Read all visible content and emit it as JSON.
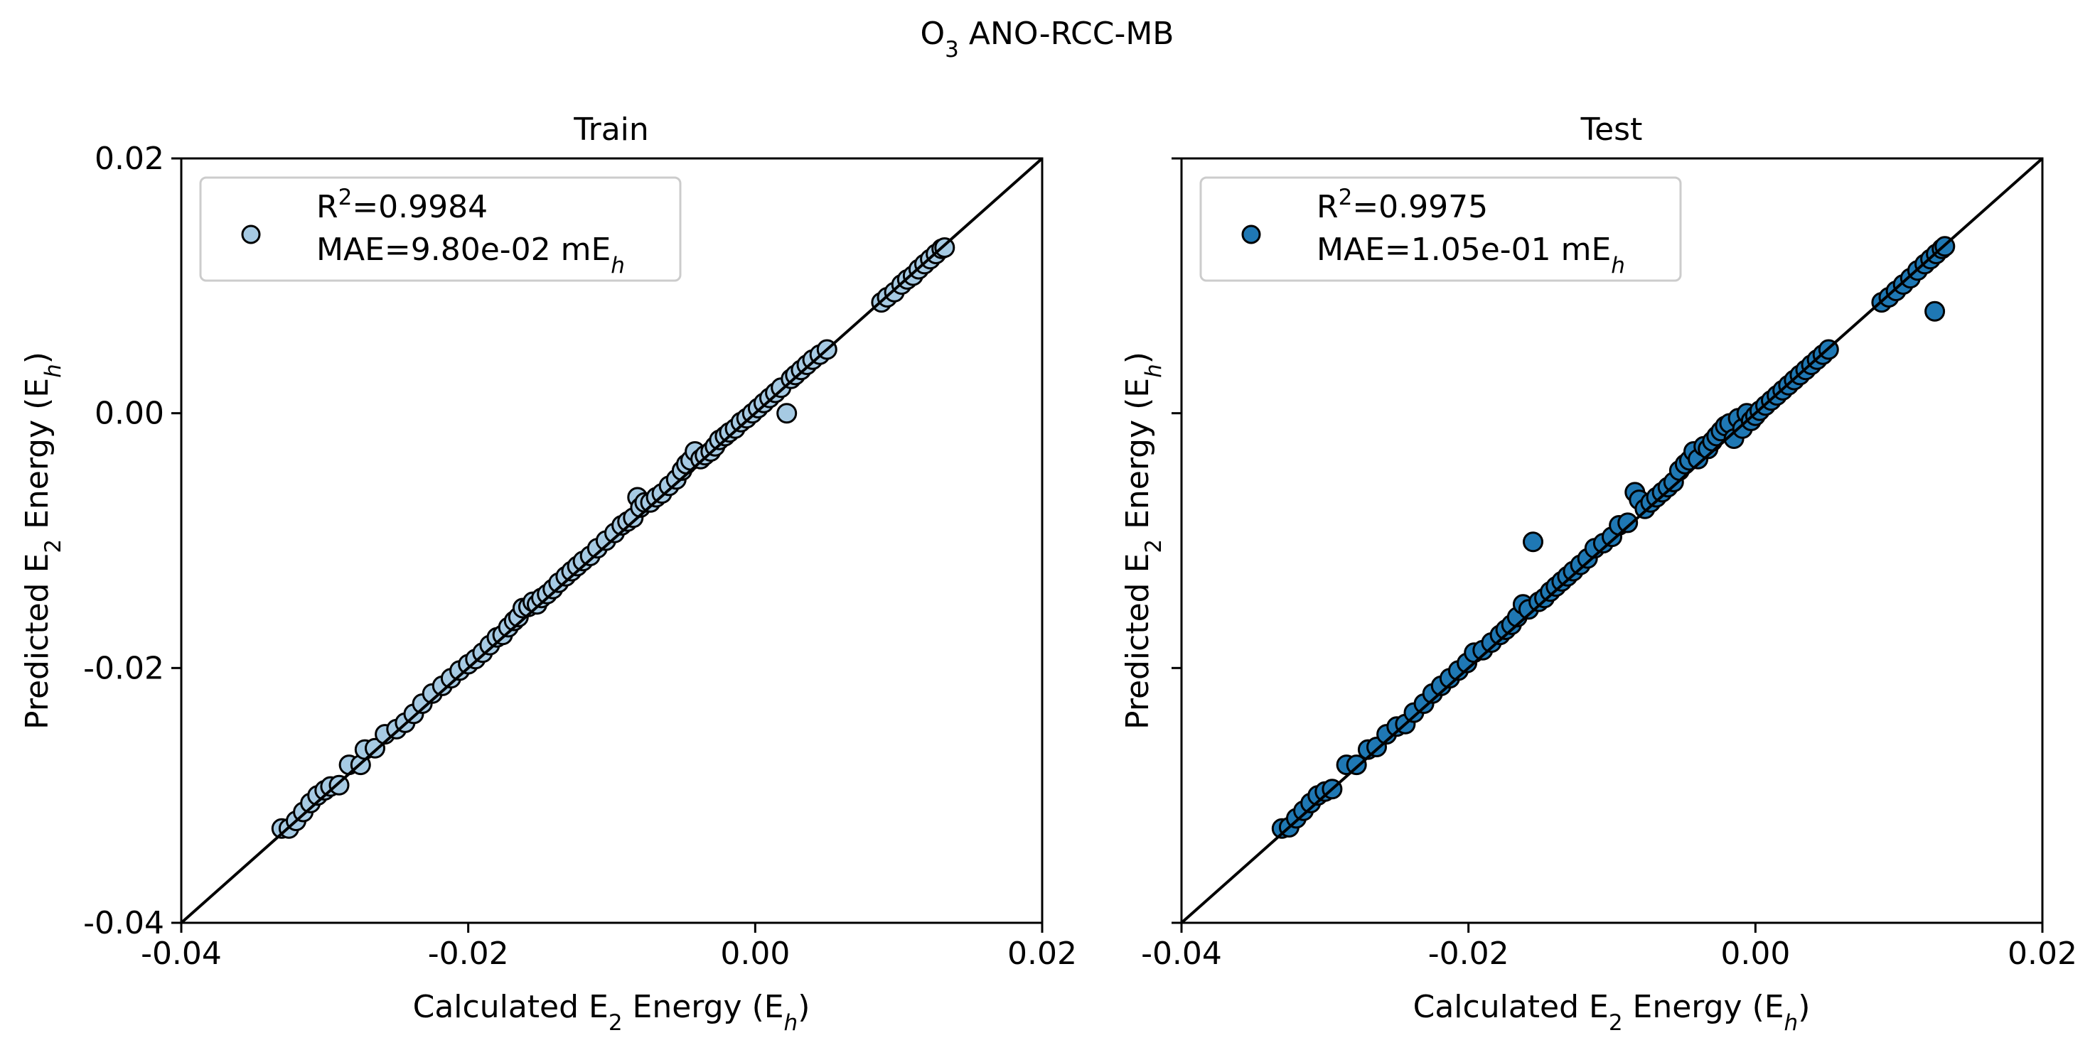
{
  "figure": {
    "title_main": "O",
    "title_sub": "3",
    "title_rest": " ANO-RCC-MB"
  },
  "chart_data": [
    {
      "type": "scatter",
      "title": "Train",
      "xlabel": {
        "pre": "Calculated E",
        "sub": "2",
        "mid": " Energy (E",
        "sub2": "h",
        "post": ")"
      },
      "ylabel": {
        "pre": "Predicted E",
        "sub": "2",
        "mid": " Energy (E",
        "sub2": "h",
        "post": ")"
      },
      "xlim": [
        -0.04,
        0.02
      ],
      "ylim": [
        -0.04,
        0.02
      ],
      "xticks": [
        -0.04,
        -0.02,
        0.0,
        0.02
      ],
      "xtick_labels": [
        "-0.04",
        "-0.02",
        "0.00",
        "0.02"
      ],
      "yticks": [
        -0.04,
        -0.02,
        0.0,
        0.02
      ],
      "ytick_labels": [
        "-0.04",
        "-0.02",
        "0.00",
        "0.02"
      ],
      "grid": false,
      "legend_placement": "upper-left",
      "legend": {
        "r2": "R",
        "r2_sup": "2",
        "r2_val": "=0.9984",
        "mae": "MAE=9.80e-02 mE",
        "mae_sub": "h"
      },
      "color": "#a6cae3",
      "points": [
        [
          -0.033,
          -0.0326
        ],
        [
          -0.0325,
          -0.0326
        ],
        [
          -0.032,
          -0.032
        ],
        [
          -0.0315,
          -0.0313
        ],
        [
          -0.031,
          -0.0306
        ],
        [
          -0.0305,
          -0.03
        ],
        [
          -0.03,
          -0.0296
        ],
        [
          -0.0296,
          -0.0293
        ],
        [
          -0.029,
          -0.0292
        ],
        [
          -0.0283,
          -0.0276
        ],
        [
          -0.0275,
          -0.0276
        ],
        [
          -0.0272,
          -0.0264
        ],
        [
          -0.0265,
          -0.0263
        ],
        [
          -0.0258,
          -0.0252
        ],
        [
          -0.025,
          -0.0248
        ],
        [
          -0.0244,
          -0.0243
        ],
        [
          -0.0238,
          -0.0236
        ],
        [
          -0.0232,
          -0.0228
        ],
        [
          -0.0225,
          -0.022
        ],
        [
          -0.0218,
          -0.0214
        ],
        [
          -0.0212,
          -0.0208
        ],
        [
          -0.0206,
          -0.0202
        ],
        [
          -0.02,
          -0.0197
        ],
        [
          -0.0195,
          -0.0193
        ],
        [
          -0.019,
          -0.0188
        ],
        [
          -0.0185,
          -0.0182
        ],
        [
          -0.018,
          -0.0176
        ],
        [
          -0.0176,
          -0.0174
        ],
        [
          -0.0172,
          -0.0168
        ],
        [
          -0.0168,
          -0.0163
        ],
        [
          -0.0165,
          -0.016
        ],
        [
          -0.0162,
          -0.0153
        ],
        [
          -0.0158,
          -0.0152
        ],
        [
          -0.0155,
          -0.0148
        ],
        [
          -0.0152,
          -0.015
        ],
        [
          -0.0149,
          -0.0145
        ],
        [
          -0.0145,
          -0.0142
        ],
        [
          -0.0141,
          -0.0138
        ],
        [
          -0.0137,
          -0.0133
        ],
        [
          -0.0132,
          -0.0128
        ],
        [
          -0.0128,
          -0.0124
        ],
        [
          -0.0124,
          -0.012
        ],
        [
          -0.012,
          -0.0116
        ],
        [
          -0.0115,
          -0.0112
        ],
        [
          -0.011,
          -0.0106
        ],
        [
          -0.0104,
          -0.01
        ],
        [
          -0.0098,
          -0.0094
        ],
        [
          -0.0093,
          -0.0088
        ],
        [
          -0.0089,
          -0.0085
        ],
        [
          -0.0085,
          -0.0082
        ],
        [
          -0.0082,
          -0.0066
        ],
        [
          -0.008,
          -0.0074
        ],
        [
          -0.0077,
          -0.007
        ],
        [
          -0.0073,
          -0.007
        ],
        [
          -0.0069,
          -0.0066
        ],
        [
          -0.0065,
          -0.0063
        ],
        [
          -0.006,
          -0.0057
        ],
        [
          -0.0055,
          -0.0052
        ],
        [
          -0.0051,
          -0.0045
        ],
        [
          -0.0048,
          -0.004
        ],
        [
          -0.0045,
          -0.0037
        ],
        [
          -0.0042,
          -0.003
        ],
        [
          -0.0038,
          -0.0036
        ],
        [
          -0.0035,
          -0.0033
        ],
        [
          -0.0031,
          -0.003
        ],
        [
          -0.0028,
          -0.0026
        ],
        [
          -0.0025,
          -0.0021
        ],
        [
          -0.0021,
          -0.0018
        ],
        [
          -0.0018,
          -0.0015
        ],
        [
          -0.0014,
          -0.0012
        ],
        [
          -0.001,
          -0.0007
        ],
        [
          -0.0006,
          -0.0004
        ],
        [
          -0.0002,
          0.0
        ],
        [
          0.0002,
          0.0004
        ],
        [
          0.0006,
          0.0008
        ],
        [
          0.001,
          0.0012
        ],
        [
          0.0014,
          0.0016
        ],
        [
          0.0018,
          0.002
        ],
        [
          0.0022,
          0.0
        ],
        [
          0.0025,
          0.0027
        ],
        [
          0.0028,
          0.003
        ],
        [
          0.0032,
          0.0034
        ],
        [
          0.0036,
          0.0038
        ],
        [
          0.004,
          0.0042
        ],
        [
          0.0045,
          0.0046
        ],
        [
          0.005,
          0.005
        ],
        [
          0.0088,
          0.0087
        ],
        [
          0.0092,
          0.0091
        ],
        [
          0.0097,
          0.0095
        ],
        [
          0.0102,
          0.0101
        ],
        [
          0.0106,
          0.0105
        ],
        [
          0.011,
          0.0108
        ],
        [
          0.0114,
          0.0113
        ],
        [
          0.0118,
          0.0117
        ],
        [
          0.0122,
          0.0121
        ],
        [
          0.0126,
          0.0125
        ],
        [
          0.013,
          0.0129
        ],
        [
          0.0132,
          0.013
        ]
      ]
    },
    {
      "type": "scatter",
      "title": "Test",
      "xlabel": {
        "pre": "Calculated E",
        "sub": "2",
        "mid": " Energy (E",
        "sub2": "h",
        "post": ")"
      },
      "ylabel": {
        "pre": "Predicted E",
        "sub": "2",
        "mid": " Energy (E",
        "sub2": "h",
        "post": ")"
      },
      "xlim": [
        -0.04,
        0.02
      ],
      "ylim": [
        -0.04,
        0.02
      ],
      "xticks": [
        -0.04,
        -0.02,
        0.0,
        0.02
      ],
      "xtick_labels": [
        "-0.04",
        "-0.02",
        "0.00",
        "0.02"
      ],
      "yticks": [
        -0.04,
        -0.02,
        0.0,
        0.02
      ],
      "ytick_labels": [
        "",
        "",
        "",
        ""
      ],
      "grid": false,
      "legend_placement": "upper-left",
      "legend": {
        "r2": "R",
        "r2_sup": "2",
        "r2_val": "=0.9975",
        "mae": "MAE=1.05e-01 mE",
        "mae_sub": "h"
      },
      "color": "#1f78b4",
      "points": [
        [
          -0.033,
          -0.0326
        ],
        [
          -0.0325,
          -0.0325
        ],
        [
          -0.032,
          -0.0318
        ],
        [
          -0.0315,
          -0.0312
        ],
        [
          -0.031,
          -0.0306
        ],
        [
          -0.0305,
          -0.03
        ],
        [
          -0.03,
          -0.0297
        ],
        [
          -0.0295,
          -0.0295
        ],
        [
          -0.0285,
          -0.0276
        ],
        [
          -0.0278,
          -0.0276
        ],
        [
          -0.027,
          -0.0264
        ],
        [
          -0.0264,
          -0.0262
        ],
        [
          -0.0257,
          -0.0252
        ],
        [
          -0.025,
          -0.0246
        ],
        [
          -0.0244,
          -0.0244
        ],
        [
          -0.0238,
          -0.0235
        ],
        [
          -0.0231,
          -0.0228
        ],
        [
          -0.0225,
          -0.022
        ],
        [
          -0.0219,
          -0.0214
        ],
        [
          -0.0213,
          -0.0208
        ],
        [
          -0.0207,
          -0.0202
        ],
        [
          -0.0201,
          -0.0196
        ],
        [
          -0.0196,
          -0.0188
        ],
        [
          -0.019,
          -0.0186
        ],
        [
          -0.0184,
          -0.018
        ],
        [
          -0.0178,
          -0.0174
        ],
        [
          -0.0174,
          -0.017
        ],
        [
          -0.017,
          -0.0166
        ],
        [
          -0.0166,
          -0.016
        ],
        [
          -0.0162,
          -0.015
        ],
        [
          -0.0158,
          -0.0154
        ],
        [
          -0.0155,
          -0.0101
        ],
        [
          -0.0151,
          -0.0148
        ],
        [
          -0.0147,
          -0.0145
        ],
        [
          -0.0143,
          -0.014
        ],
        [
          -0.0139,
          -0.0136
        ],
        [
          -0.0135,
          -0.0132
        ],
        [
          -0.0131,
          -0.0128
        ],
        [
          -0.0127,
          -0.0124
        ],
        [
          -0.0122,
          -0.0119
        ],
        [
          -0.0117,
          -0.0114
        ],
        [
          -0.0112,
          -0.0106
        ],
        [
          -0.0106,
          -0.0102
        ],
        [
          -0.01,
          -0.0097
        ],
        [
          -0.0095,
          -0.0088
        ],
        [
          -0.0089,
          -0.0086
        ],
        [
          -0.0084,
          -0.0062
        ],
        [
          -0.0081,
          -0.0068
        ],
        [
          -0.0077,
          -0.0075
        ],
        [
          -0.0073,
          -0.007
        ],
        [
          -0.0069,
          -0.0066
        ],
        [
          -0.0065,
          -0.0062
        ],
        [
          -0.0061,
          -0.0058
        ],
        [
          -0.0057,
          -0.0054
        ],
        [
          -0.0053,
          -0.0045
        ],
        [
          -0.0049,
          -0.004
        ],
        [
          -0.0046,
          -0.0037
        ],
        [
          -0.0043,
          -0.003
        ],
        [
          -0.004,
          -0.0036
        ],
        [
          -0.0036,
          -0.0026
        ],
        [
          -0.0033,
          -0.0028
        ],
        [
          -0.003,
          -0.0022
        ],
        [
          -0.0027,
          -0.0018
        ],
        [
          -0.0024,
          -0.0014
        ],
        [
          -0.0021,
          -0.001
        ],
        [
          -0.0018,
          -0.0008
        ],
        [
          -0.0015,
          -0.002
        ],
        [
          -0.0012,
          -0.0004
        ],
        [
          -0.0009,
          -0.0012
        ],
        [
          -0.0006,
          0.0
        ],
        [
          -0.0003,
          -0.0006
        ],
        [
          0.0,
          -0.0002
        ],
        [
          0.0003,
          0.0002
        ],
        [
          0.0007,
          0.0006
        ],
        [
          0.0011,
          0.001
        ],
        [
          0.0015,
          0.0014
        ],
        [
          0.0019,
          0.0018
        ],
        [
          0.0023,
          0.0022
        ],
        [
          0.0027,
          0.0026
        ],
        [
          0.0031,
          0.003
        ],
        [
          0.0035,
          0.0034
        ],
        [
          0.0039,
          0.0038
        ],
        [
          0.0043,
          0.0042
        ],
        [
          0.0047,
          0.0046
        ],
        [
          0.0051,
          0.005
        ],
        [
          0.0088,
          0.0087
        ],
        [
          0.0093,
          0.0091
        ],
        [
          0.0098,
          0.0096
        ],
        [
          0.0103,
          0.0101
        ],
        [
          0.0108,
          0.0106
        ],
        [
          0.0113,
          0.0112
        ],
        [
          0.0118,
          0.0117
        ],
        [
          0.0122,
          0.0121
        ],
        [
          0.0125,
          0.008
        ],
        [
          0.0126,
          0.0125
        ],
        [
          0.013,
          0.0129
        ],
        [
          0.0132,
          0.0131
        ]
      ]
    }
  ]
}
